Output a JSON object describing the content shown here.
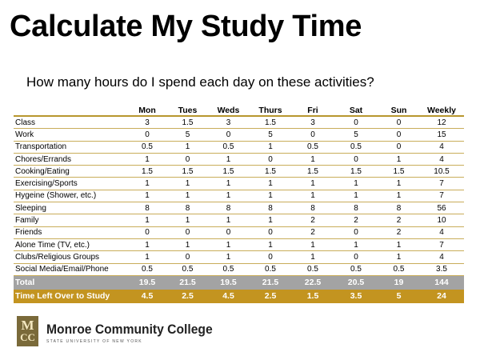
{
  "title": "Calculate My Study Time",
  "subtitle": "How many hours do I spend each day on these activities?",
  "table": {
    "columns": [
      "Mon",
      "Tues",
      "Weds",
      "Thurs",
      "Fri",
      "Sat",
      "Sun",
      "Weekly"
    ],
    "rows": [
      {
        "label": "Class",
        "values": [
          "3",
          "1.5",
          "3",
          "1.5",
          "3",
          "0",
          "0",
          "12"
        ]
      },
      {
        "label": "Work",
        "values": [
          "0",
          "5",
          "0",
          "5",
          "0",
          "5",
          "0",
          "15"
        ]
      },
      {
        "label": "Transportation",
        "values": [
          "0.5",
          "1",
          "0.5",
          "1",
          "0.5",
          "0.5",
          "0",
          "4"
        ]
      },
      {
        "label": "Chores/Errands",
        "values": [
          "1",
          "0",
          "1",
          "0",
          "1",
          "0",
          "1",
          "4"
        ]
      },
      {
        "label": "Cooking/Eating",
        "values": [
          "1.5",
          "1.5",
          "1.5",
          "1.5",
          "1.5",
          "1.5",
          "1.5",
          "10.5"
        ]
      },
      {
        "label": "Exercising/Sports",
        "values": [
          "1",
          "1",
          "1",
          "1",
          "1",
          "1",
          "1",
          "7"
        ]
      },
      {
        "label": "Hygeine (Shower, etc.)",
        "values": [
          "1",
          "1",
          "1",
          "1",
          "1",
          "1",
          "1",
          "7"
        ]
      },
      {
        "label": "Sleeping",
        "values": [
          "8",
          "8",
          "8",
          "8",
          "8",
          "8",
          "8",
          "56"
        ]
      },
      {
        "label": "Family",
        "values": [
          "1",
          "1",
          "1",
          "1",
          "2",
          "2",
          "2",
          "10"
        ]
      },
      {
        "label": "Friends",
        "values": [
          "0",
          "0",
          "0",
          "0",
          "2",
          "0",
          "2",
          "4"
        ]
      },
      {
        "label": "Alone Time (TV, etc.)",
        "values": [
          "1",
          "1",
          "1",
          "1",
          "1",
          "1",
          "1",
          "7"
        ]
      },
      {
        "label": "Clubs/Religious Groups",
        "values": [
          "1",
          "0",
          "1",
          "0",
          "1",
          "0",
          "1",
          "4"
        ]
      },
      {
        "label": "Social Media/Email/Phone",
        "values": [
          "0.5",
          "0.5",
          "0.5",
          "0.5",
          "0.5",
          "0.5",
          "0.5",
          "3.5"
        ]
      }
    ],
    "total": {
      "label": "Total",
      "values": [
        "19.5",
        "21.5",
        "19.5",
        "21.5",
        "22.5",
        "20.5",
        "19",
        "144"
      ]
    },
    "left_over": {
      "label": "Time Left Over to Study",
      "values": [
        "4.5",
        "2.5",
        "4.5",
        "2.5",
        "1.5",
        "3.5",
        "5",
        "24"
      ]
    }
  },
  "logo": {
    "mark_top": "M",
    "mark_bottom": "CC",
    "name": "Monroe Community College",
    "tagline": "STATE UNIVERSITY OF NEW YORK"
  },
  "colors": {
    "accent_gold": "#c39420",
    "total_gray": "#a3a3a3",
    "rule_gold": "#b8962e",
    "logo_brown": "#7a6a3a"
  }
}
